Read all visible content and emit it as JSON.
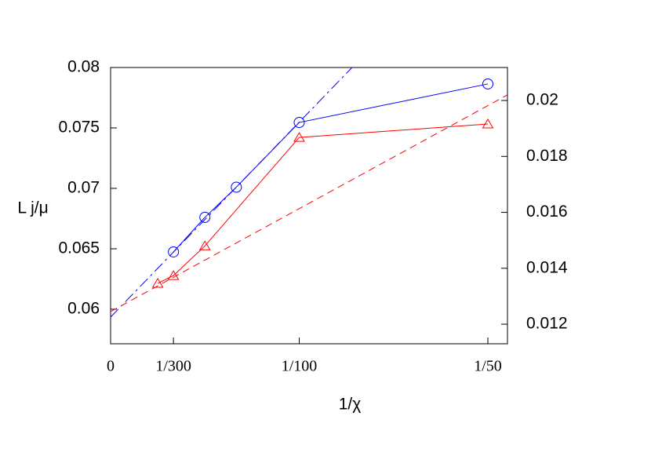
{
  "chart_data": {
    "type": "line",
    "x_label": "1/χ",
    "y_label": "L j/μ",
    "xlim": [
      0,
      0.02104
    ],
    "xticks": [
      0,
      {
        "value": 0.003333,
        "label": "1/300"
      },
      {
        "value": 0.01,
        "label": "1/100"
      },
      {
        "value": 0.02,
        "label": "1/50"
      }
    ],
    "ylim": [
      0.05714,
      0.08
    ],
    "yticks": [
      0.06,
      0.065,
      0.07,
      0.075,
      0.08
    ],
    "y2lim": [
      0.0113,
      0.02118
    ],
    "y2ticks": [
      0.012,
      0.014,
      0.016,
      0.018,
      0.02
    ],
    "series": [
      {
        "color": "#0000ff",
        "marker": "circle",
        "dash": "none",
        "x": [
          0.003333,
          0.005,
          0.006667,
          0.01,
          0.02
        ],
        "values": [
          0.06474,
          0.0676,
          0.0701,
          0.07545,
          0.07864
        ]
      },
      {
        "color": "#0000ff",
        "marker": "none",
        "dash": "14 5 3 5",
        "x": [
          0,
          0.0128
        ],
        "values": [
          0.05935,
          0.08
        ]
      },
      {
        "color": "#ff0000",
        "marker": "triangle",
        "dash": "none",
        "axis": "y2",
        "x": [
          0.0025,
          0.003333,
          0.005,
          0.01,
          0.02
        ],
        "values": [
          0.01346,
          0.01374,
          0.0148,
          0.01868,
          0.01916
        ]
      },
      {
        "color": "#ff0000",
        "marker": "none",
        "dash": "9 6",
        "axis": "y2",
        "x": [
          0,
          0.02104
        ],
        "values": [
          0.01245,
          0.0202
        ]
      }
    ]
  }
}
